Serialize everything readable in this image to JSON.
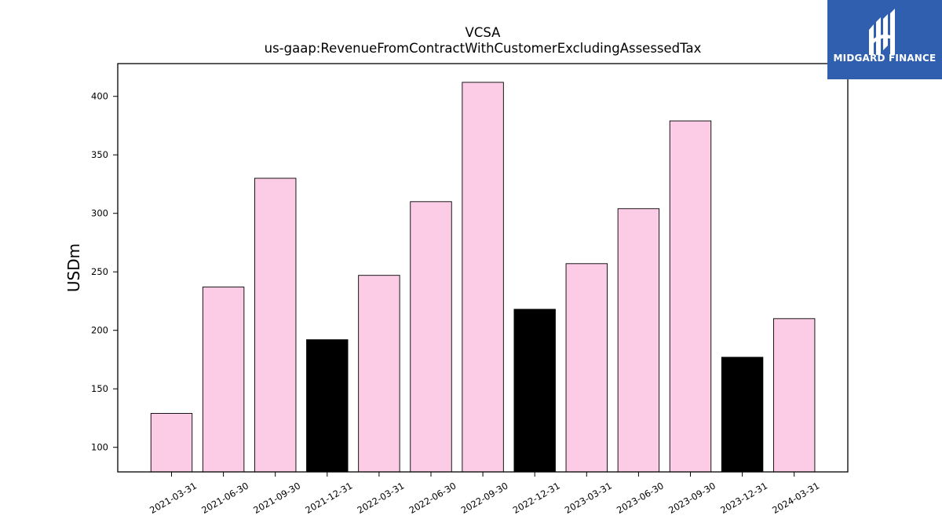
{
  "chart_data": {
    "type": "bar",
    "title": "VCSA",
    "subtitle": "us-gaap:RevenueFromContractWithCustomerExcludingAssessedTax",
    "xlabel": "",
    "ylabel": "USDm",
    "categories": [
      "2021-03-31",
      "2021-06-30",
      "2021-09-30",
      "2021-12-31",
      "2022-03-31",
      "2022-06-30",
      "2022-09-30",
      "2022-12-31",
      "2023-03-31",
      "2023-06-30",
      "2023-09-30",
      "2023-12-31",
      "2024-03-31"
    ],
    "values": [
      129,
      237,
      330,
      192,
      247,
      310,
      412,
      218,
      257,
      304,
      379,
      177,
      210
    ],
    "bar_colors": [
      "#fccbe5",
      "#fccbe5",
      "#fccbe5",
      "#000000",
      "#fccbe5",
      "#fccbe5",
      "#fccbe5",
      "#000000",
      "#fccbe5",
      "#fccbe5",
      "#fccbe5",
      "#000000",
      "#fccbe5"
    ],
    "ylim": [
      79,
      428
    ],
    "yticks": [
      100,
      150,
      200,
      250,
      300,
      350,
      400
    ],
    "grid": false
  },
  "logo": {
    "text": "MIDGARD FINANCE",
    "background": "#2f5fae"
  }
}
